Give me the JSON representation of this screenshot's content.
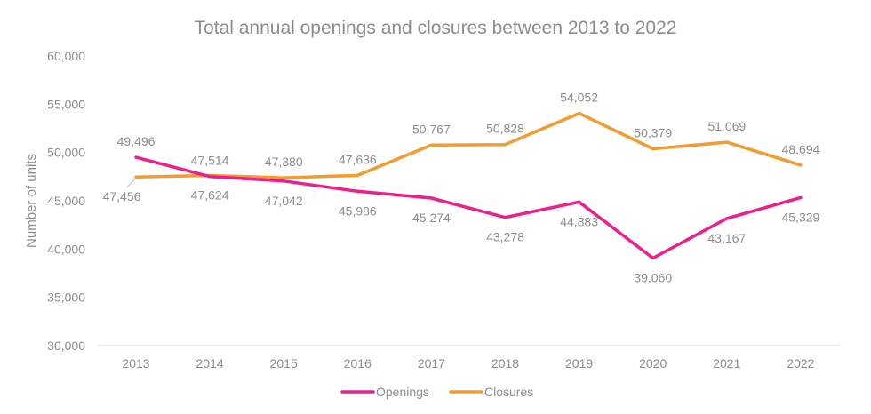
{
  "chart_data": {
    "type": "line",
    "title": "Total annual openings and closures between 2013 to 2022",
    "xlabel": "",
    "ylabel": "Number of units",
    "categories": [
      "2013",
      "2014",
      "2015",
      "2016",
      "2017",
      "2018",
      "2019",
      "2020",
      "2021",
      "2022"
    ],
    "ylim": [
      30000,
      60000
    ],
    "yticks": [
      30000,
      35000,
      40000,
      45000,
      50000,
      55000,
      60000
    ],
    "ytick_labels": [
      "30,000",
      "35,000",
      "40,000",
      "45,000",
      "50,000",
      "55,000",
      "60,000"
    ],
    "grid": false,
    "legend_position": "bottom",
    "series": [
      {
        "name": "Openings",
        "color": "#ef1d8e",
        "values": [
          49496,
          47514,
          47042,
          45986,
          45274,
          43278,
          44883,
          39060,
          43167,
          45329
        ],
        "labels": [
          "49,496",
          "47,514",
          "47,042",
          "45,986",
          "45,274",
          "43,278",
          "44,883",
          "39,060",
          "43,167",
          "45,329"
        ]
      },
      {
        "name": "Closures",
        "color": "#f59a2c",
        "values": [
          47456,
          47624,
          47380,
          47636,
          50767,
          50828,
          54052,
          50379,
          51069,
          48694
        ],
        "labels": [
          "47,456",
          "47,624",
          "47,380",
          "47,636",
          "50,767",
          "50,828",
          "54,052",
          "50,379",
          "51,069",
          "48,694"
        ]
      }
    ]
  }
}
